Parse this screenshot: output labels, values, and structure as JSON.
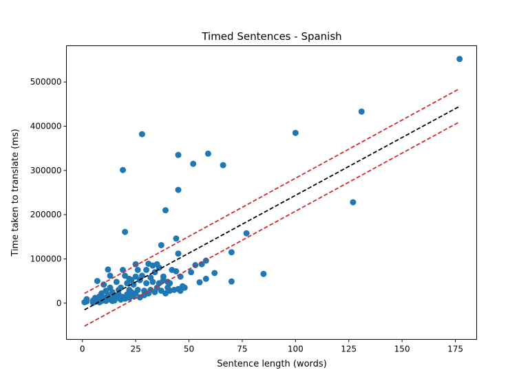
{
  "chart_data": {
    "type": "scatter",
    "title": "Timed Sentences - Spanish",
    "xlabel": "Sentence length (words)",
    "ylabel": "Time taken to translate (ms)",
    "xlim": [
      -7.5,
      185
    ],
    "ylim": [
      -82000,
      582000
    ],
    "xticks": [
      0,
      25,
      50,
      75,
      100,
      125,
      150,
      175
    ],
    "yticks": [
      0,
      100000,
      200000,
      300000,
      400000,
      500000
    ],
    "grid": false,
    "colors": {
      "points": "#1f77b4",
      "fit": "#000000",
      "bounds": "#d62728"
    },
    "points": [
      [
        1,
        2000
      ],
      [
        2,
        4000
      ],
      [
        2,
        9000
      ],
      [
        5,
        1000
      ],
      [
        5,
        6000
      ],
      [
        6,
        3000
      ],
      [
        6,
        12000
      ],
      [
        7,
        50000
      ],
      [
        7,
        8000
      ],
      [
        8,
        15000
      ],
      [
        8,
        2000
      ],
      [
        9,
        5000
      ],
      [
        9,
        22000
      ],
      [
        10,
        42000
      ],
      [
        10,
        12000
      ],
      [
        11,
        28000
      ],
      [
        11,
        5000
      ],
      [
        12,
        76000
      ],
      [
        12,
        18000
      ],
      [
        12,
        8000
      ],
      [
        13,
        62000
      ],
      [
        13,
        35000
      ],
      [
        13,
        10000
      ],
      [
        14,
        5000
      ],
      [
        14,
        25000
      ],
      [
        15,
        18000
      ],
      [
        15,
        6000
      ],
      [
        16,
        48000
      ],
      [
        16,
        12000
      ],
      [
        17,
        30000
      ],
      [
        17,
        20000
      ],
      [
        18,
        8000
      ],
      [
        18,
        35000
      ],
      [
        19,
        14000
      ],
      [
        19,
        75000
      ],
      [
        19,
        301000
      ],
      [
        20,
        161000
      ],
      [
        20,
        10000
      ],
      [
        20,
        62000
      ],
      [
        21,
        20000
      ],
      [
        21,
        45000
      ],
      [
        22,
        55000
      ],
      [
        22,
        30000
      ],
      [
        22,
        12000
      ],
      [
        23,
        25000
      ],
      [
        23,
        52000
      ],
      [
        24,
        16000
      ],
      [
        24,
        42000
      ],
      [
        25,
        88000
      ],
      [
        25,
        22000
      ],
      [
        25,
        60000
      ],
      [
        26,
        75000
      ],
      [
        26,
        30000
      ],
      [
        27,
        13000
      ],
      [
        27,
        52000
      ],
      [
        28,
        382000
      ],
      [
        28,
        62000
      ],
      [
        29,
        28000
      ],
      [
        29,
        18000
      ],
      [
        30,
        75000
      ],
      [
        30,
        45000
      ],
      [
        31,
        89000
      ],
      [
        31,
        22000
      ],
      [
        32,
        58000
      ],
      [
        32,
        30000
      ],
      [
        33,
        85000
      ],
      [
        33,
        48000
      ],
      [
        34,
        25000
      ],
      [
        34,
        70000
      ],
      [
        35,
        88000
      ],
      [
        35,
        35000
      ],
      [
        36,
        80000
      ],
      [
        36,
        45000
      ],
      [
        37,
        131000
      ],
      [
        37,
        28000
      ],
      [
        38,
        60000
      ],
      [
        38,
        52000
      ],
      [
        39,
        210000
      ],
      [
        39,
        22000
      ],
      [
        40,
        48000
      ],
      [
        40,
        35000
      ],
      [
        41,
        45000
      ],
      [
        41,
        28000
      ],
      [
        42,
        75000
      ],
      [
        43,
        30000
      ],
      [
        44,
        146000
      ],
      [
        44,
        72000
      ],
      [
        45,
        335000
      ],
      [
        45,
        256000
      ],
      [
        45,
        112000
      ],
      [
        45,
        32000
      ],
      [
        46,
        60000
      ],
      [
        46,
        28000
      ],
      [
        47,
        38000
      ],
      [
        48,
        35000
      ],
      [
        51,
        70000
      ],
      [
        52,
        315000
      ],
      [
        53,
        86000
      ],
      [
        55,
        47000
      ],
      [
        56,
        88000
      ],
      [
        58,
        96000
      ],
      [
        58,
        55000
      ],
      [
        59,
        338000
      ],
      [
        62,
        68000
      ],
      [
        66,
        312000
      ],
      [
        70,
        115000
      ],
      [
        70,
        49000
      ],
      [
        77,
        158000
      ],
      [
        85,
        66000
      ],
      [
        100,
        385000
      ],
      [
        127,
        228000
      ],
      [
        131,
        433000
      ],
      [
        177,
        552000
      ]
    ],
    "fit_line": {
      "x": [
        1,
        177
      ],
      "y": [
        -15000,
        445000
      ]
    },
    "upper_bound": {
      "x": [
        1,
        177
      ],
      "y": [
        22000,
        485000
      ]
    },
    "lower_bound": {
      "x": [
        1,
        177
      ],
      "y": [
        -52000,
        410000
      ]
    }
  }
}
